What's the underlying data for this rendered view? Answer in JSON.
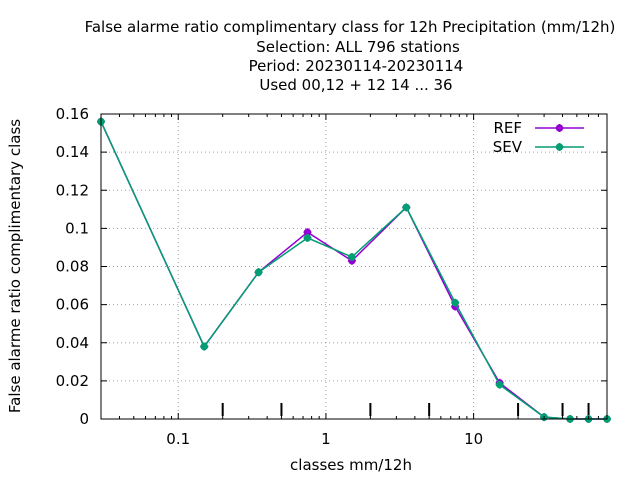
{
  "chart_data": {
    "type": "line",
    "title_lines": [
      "False alarme ratio complimentary class  for 12h Precipitation (mm/12h)",
      "Selection: ALL    796 stations",
      "Period: 20230114-20230114",
      "Used  00,12  + 12 14 ... 36"
    ],
    "xlabel": "classes mm/12h",
    "ylabel": "False alarme ratio complimentary class",
    "x_scale": "log",
    "xlim": [
      0.03,
      80
    ],
    "ylim": [
      0,
      0.16
    ],
    "grid": true,
    "legend_position": "top-right",
    "x_ticks": [
      {
        "value": 0.1,
        "label": "0.1"
      },
      {
        "value": 1,
        "label": "1"
      },
      {
        "value": 10,
        "label": "10"
      }
    ],
    "y_ticks": [
      {
        "value": 0,
        "label": "0"
      },
      {
        "value": 0.02,
        "label": "0.02"
      },
      {
        "value": 0.04,
        "label": "0.04"
      },
      {
        "value": 0.06,
        "label": "0.06"
      },
      {
        "value": 0.08,
        "label": "0.08"
      },
      {
        "value": 0.1,
        "label": "0.1"
      },
      {
        "value": 0.12,
        "label": "0.12"
      },
      {
        "value": 0.14,
        "label": "0.14"
      },
      {
        "value": 0.16,
        "label": "0.16"
      }
    ],
    "class_marks": [
      0.2,
      0.5,
      2,
      5,
      20,
      40,
      60
    ],
    "x": [
      0.03,
      0.15,
      0.35,
      0.75,
      1.5,
      3.5,
      7.5,
      15,
      30,
      45,
      60,
      80
    ],
    "series": [
      {
        "name": "REF",
        "color": "#9400d3",
        "values": [
          0.156,
          0.038,
          0.077,
          0.098,
          0.083,
          0.111,
          0.059,
          0.019,
          0.001,
          0.0,
          0.0,
          0.0
        ]
      },
      {
        "name": "SEV",
        "color": "#009e73",
        "values": [
          0.156,
          0.038,
          0.077,
          0.095,
          0.085,
          0.111,
          0.061,
          0.018,
          0.001,
          0.0,
          0.0,
          0.0
        ]
      }
    ]
  }
}
